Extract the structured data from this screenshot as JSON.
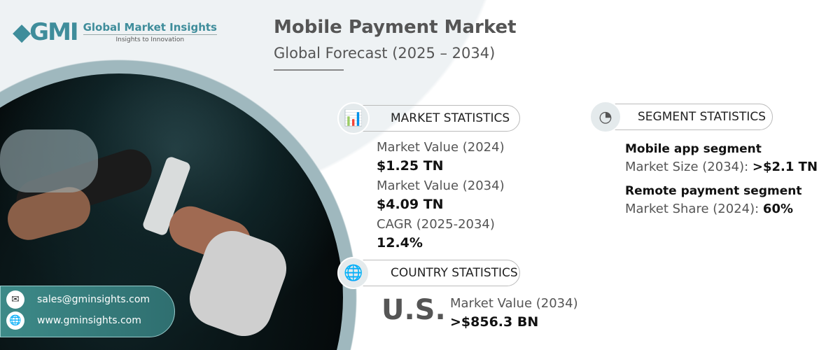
{
  "brand": {
    "name": "Global Market Insights",
    "tagline": "Insights to Innovation",
    "logo_text": "GMI"
  },
  "header": {
    "title": "Mobile Payment Market",
    "subtitle": "Global Forecast (2025 – 2034)"
  },
  "market_statistics": {
    "heading": "MARKET STATISTICS",
    "icon": "chart-globe-icon",
    "items": [
      {
        "label": "Market Value (2024)",
        "value": "$1.25 TN"
      },
      {
        "label": "Market Value (2034)",
        "value": "$4.09 TN"
      },
      {
        "label": "CAGR (2025-2034)",
        "value": "12.4%"
      }
    ]
  },
  "segment_statistics": {
    "heading": "SEGMENT STATISTICS",
    "icon": "pie-chart-icon",
    "items": [
      {
        "name": "Mobile app segment",
        "label": "Market Size (2034):",
        "value": ">$2.1 TN"
      },
      {
        "name": "Remote payment segment",
        "label": "Market Share (2024):",
        "value": "60%"
      }
    ]
  },
  "country_statistics": {
    "heading": "COUNTRY STATISTICS",
    "icon": "globe-icon",
    "country": "U.S.",
    "label": "Market Value (2034)",
    "value": ">$856.3 BN"
  },
  "contact": {
    "email": "sales@gminsights.com",
    "website": "www.gminsights.com"
  },
  "colors": {
    "accent": "#3f8d9b",
    "contact_bg": "#3d8a88"
  }
}
